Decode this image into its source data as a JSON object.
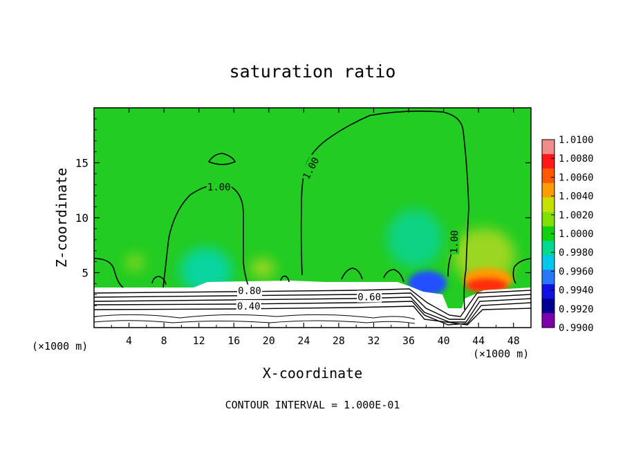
{
  "chart_data": {
    "type": "heatmap",
    "title": "saturation ratio",
    "xlabel": "X-coordinate",
    "ylabel": "Z-coordinate",
    "x_unit": "(×1000 m)",
    "z_unit": "(×1000 m)",
    "xlim": [
      0,
      50
    ],
    "ylim": [
      0,
      20
    ],
    "x_ticks": [
      4,
      8,
      12,
      16,
      20,
      24,
      28,
      32,
      36,
      40,
      44,
      48
    ],
    "y_ticks": [
      5,
      10,
      15
    ],
    "footer": "CONTOUR INTERVAL = 1.000E-01",
    "contour_labels": [
      {
        "text": "1.00",
        "x": 14.3,
        "z": 12.8
      },
      {
        "text": "1.00",
        "x": 24.8,
        "z": 14.5
      },
      {
        "text": "1.00",
        "x": 41.2,
        "z": 7.8
      },
      {
        "text": "0.80",
        "x": 17.8,
        "z": 3.35
      },
      {
        "text": "0.60",
        "x": 31.5,
        "z": 2.8
      },
      {
        "text": "0.40",
        "x": 17.7,
        "z": 1.95
      }
    ],
    "colorbar": {
      "ticks": [
        "1.0100",
        "1.0080",
        "1.0060",
        "1.0040",
        "1.0020",
        "1.0000",
        "0.9980",
        "0.9960",
        "0.9940",
        "0.9920",
        "0.9900"
      ],
      "colors": [
        "#f08c8c",
        "#ff1a1a",
        "#ff5a00",
        "#ff9c00",
        "#c8e000",
        "#80e000",
        "#10d010",
        "#00d890",
        "#00c8e8",
        "#2878ff",
        "#1010e0",
        "#000090",
        "#7a00a8"
      ]
    },
    "field_colors": {
      "background": "#22cc22",
      "cyan": "#00d8c8",
      "blue": "#2050ff",
      "red": "#ff2a10",
      "orange": "#ff9a00",
      "yellowgreen": "#a8d820",
      "dry": "#ffffff",
      "contour": "#000000"
    }
  }
}
